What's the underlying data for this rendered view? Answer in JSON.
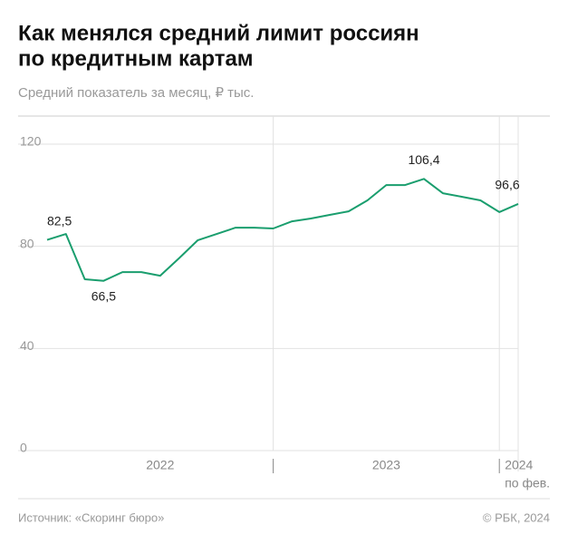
{
  "chart_data": {
    "type": "line",
    "title": [
      "Как менялся средний лимит россиян",
      "по кредитным картам"
    ],
    "subtitle": "Средний показатель за месяц,  ₽ тыс.",
    "categories": [
      null,
      null,
      null,
      null,
      null,
      null,
      null,
      null,
      null,
      null,
      null,
      null,
      null,
      null,
      null,
      null,
      null,
      null,
      null,
      null,
      null,
      null,
      null,
      null,
      null,
      null
    ],
    "year_labels": [
      "2022",
      "2023",
      "2024"
    ],
    "last_label": "по фев.",
    "series": [
      {
        "name": "Средний лимит",
        "color": "#1a9e6e",
        "values": [
          82.5,
          84.8,
          67.1,
          66.5,
          69.9,
          69.9,
          68.5,
          75.3,
          82.4,
          84.8,
          87.3,
          87.3,
          87.0,
          89.8,
          90.9,
          92.3,
          93.7,
          98.0,
          104.0,
          104.0,
          106.4,
          100.8,
          99.4,
          98.0,
          93.4,
          96.6
        ],
        "value_labels": [
          "82,5",
          null,
          null,
          "66,5",
          null,
          null,
          null,
          null,
          null,
          null,
          null,
          null,
          null,
          null,
          null,
          null,
          null,
          null,
          null,
          null,
          "106,4",
          null,
          null,
          null,
          null,
          "96,6"
        ]
      }
    ],
    "ylim": [
      0,
      120
    ],
    "yticks": [
      0,
      40,
      80,
      120
    ],
    "grid": true,
    "source": "Источник: «Скоринг бюро»",
    "copyright": "© РБК, 2024"
  }
}
